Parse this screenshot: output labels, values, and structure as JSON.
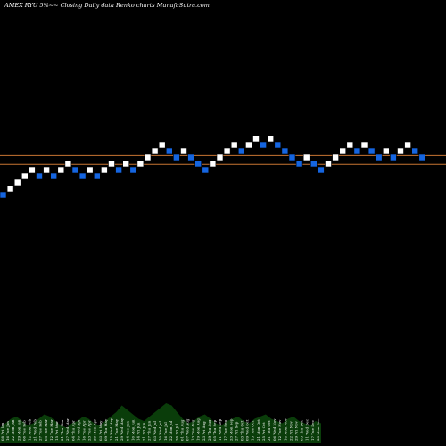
{
  "header": {
    "title": "AMEX  RYU 5%~~ Closing Daily data  Renko  charts MunafaSutra.com"
  },
  "chart_data": {
    "type": "renko",
    "title": "AMEX  RYU 5%~~ Closing Daily data  Renko  charts MunafaSutra.com",
    "box_size_percent": 5,
    "colors": {
      "background": "#000000",
      "up_brick": "#ffffff",
      "down_brick": "#1565e0",
      "reference_line": "#c87533",
      "volume": "#0a3d0a"
    },
    "bricks": [
      {
        "level": 0,
        "dir": "down"
      },
      {
        "level": 1,
        "dir": "up"
      },
      {
        "level": 2,
        "dir": "up"
      },
      {
        "level": 3,
        "dir": "up"
      },
      {
        "level": 4,
        "dir": "up"
      },
      {
        "level": 3,
        "dir": "down"
      },
      {
        "level": 4,
        "dir": "up"
      },
      {
        "level": 3,
        "dir": "down"
      },
      {
        "level": 4,
        "dir": "up"
      },
      {
        "level": 5,
        "dir": "up"
      },
      {
        "level": 4,
        "dir": "down"
      },
      {
        "level": 3,
        "dir": "down"
      },
      {
        "level": 4,
        "dir": "up"
      },
      {
        "level": 3,
        "dir": "down"
      },
      {
        "level": 4,
        "dir": "up"
      },
      {
        "level": 5,
        "dir": "up"
      },
      {
        "level": 4,
        "dir": "down"
      },
      {
        "level": 5,
        "dir": "up"
      },
      {
        "level": 4,
        "dir": "down"
      },
      {
        "level": 5,
        "dir": "up"
      },
      {
        "level": 6,
        "dir": "up"
      },
      {
        "level": 7,
        "dir": "up"
      },
      {
        "level": 8,
        "dir": "up"
      },
      {
        "level": 7,
        "dir": "down"
      },
      {
        "level": 6,
        "dir": "down"
      },
      {
        "level": 7,
        "dir": "up"
      },
      {
        "level": 6,
        "dir": "down"
      },
      {
        "level": 5,
        "dir": "down"
      },
      {
        "level": 4,
        "dir": "down"
      },
      {
        "level": 5,
        "dir": "up"
      },
      {
        "level": 6,
        "dir": "up"
      },
      {
        "level": 7,
        "dir": "up"
      },
      {
        "level": 8,
        "dir": "up"
      },
      {
        "level": 7,
        "dir": "down"
      },
      {
        "level": 8,
        "dir": "up"
      },
      {
        "level": 9,
        "dir": "up"
      },
      {
        "level": 8,
        "dir": "down"
      },
      {
        "level": 9,
        "dir": "up"
      },
      {
        "level": 8,
        "dir": "down"
      },
      {
        "level": 7,
        "dir": "down"
      },
      {
        "level": 6,
        "dir": "down"
      },
      {
        "level": 5,
        "dir": "down"
      },
      {
        "level": 6,
        "dir": "up"
      },
      {
        "level": 5,
        "dir": "down"
      },
      {
        "level": 4,
        "dir": "down"
      },
      {
        "level": 5,
        "dir": "up"
      },
      {
        "level": 6,
        "dir": "up"
      },
      {
        "level": 7,
        "dir": "up"
      },
      {
        "level": 8,
        "dir": "up"
      },
      {
        "level": 7,
        "dir": "down"
      },
      {
        "level": 8,
        "dir": "up"
      },
      {
        "level": 7,
        "dir": "down"
      },
      {
        "level": 6,
        "dir": "down"
      },
      {
        "level": 7,
        "dir": "up"
      },
      {
        "level": 6,
        "dir": "down"
      },
      {
        "level": 7,
        "dir": "up"
      },
      {
        "level": 8,
        "dir": "up"
      },
      {
        "level": 7,
        "dir": "down"
      },
      {
        "level": 6,
        "dir": "down"
      }
    ],
    "reference_lines": [
      {
        "level": 6.3
      },
      {
        "level": 4.9
      }
    ],
    "date_labels": [
      "08 Fri Jan",
      "16 Tue Jan",
      "22 Mon Jan",
      "29 Mon Jan",
      "06 Tue Feb",
      "12 Mon Feb",
      "21 Wed Feb",
      "27 Tue Feb",
      "05 Tue Mar",
      "12 Tue Mar",
      "15 Fri Mar",
      "21 Thu Mar",
      "27 Wed Mar",
      "04 Thu Apr",
      "10 Wed Apr",
      "16 Tue Apr",
      "23 Tue Apr",
      "29 Mon Apr",
      "03 Fri May",
      "09 Thu May",
      "15 Wed May",
      "21 Tue May",
      "29 Wed May",
      "04 Tue Jun",
      "10 Mon Jun",
      "14 Fri Jun",
      "21 Fri Jun",
      "27 Thu Jun",
      "03 Wed Jul",
      "10 Wed Jul",
      "16 Tue Jul",
      "22 Mon Jul",
      "26 Fri Jul",
      "01 Thu Aug",
      "07 Wed Aug",
      "13 Tue Aug",
      "19 Mon Aug",
      "23 Fri Aug",
      "29 Thu Aug",
      "05 Thu Sep",
      "11 Wed Sep",
      "17 Tue Sep",
      "23 Mon Sep",
      "27 Fri Sep",
      "03 Thu Oct",
      "09 Wed Oct",
      "15 Tue Oct",
      "21 Mon Oct",
      "25 Fri Oct",
      "31 Thu Oct",
      "06 Wed Nov",
      "12 Tue Nov",
      "18 Mon Nov",
      "22 Fri Nov",
      "29 Fri Nov",
      "05 Thu Dec",
      "11 Wed Dec",
      "17 Tue Dec",
      "23 Mon Dec"
    ],
    "volume": [
      0.35,
      0.45,
      0.55,
      0.6,
      0.5,
      0.4,
      0.45,
      0.55,
      0.65,
      0.6,
      0.5,
      0.4,
      0.35,
      0.45,
      0.5,
      0.6,
      0.55,
      0.45,
      0.4,
      0.5,
      0.6,
      0.7,
      0.85,
      0.75,
      0.65,
      0.55,
      0.5,
      0.6,
      0.7,
      0.8,
      0.9,
      0.85,
      0.7,
      0.55,
      0.45,
      0.5,
      0.6,
      0.65,
      0.55,
      0.45,
      0.4,
      0.5,
      0.55,
      0.6,
      0.5,
      0.45,
      0.55,
      0.6,
      0.65,
      0.55,
      0.5,
      0.45,
      0.55,
      0.6,
      0.5,
      0.45,
      0.4,
      0.5,
      0.45
    ],
    "legend": "none",
    "grid": false
  }
}
